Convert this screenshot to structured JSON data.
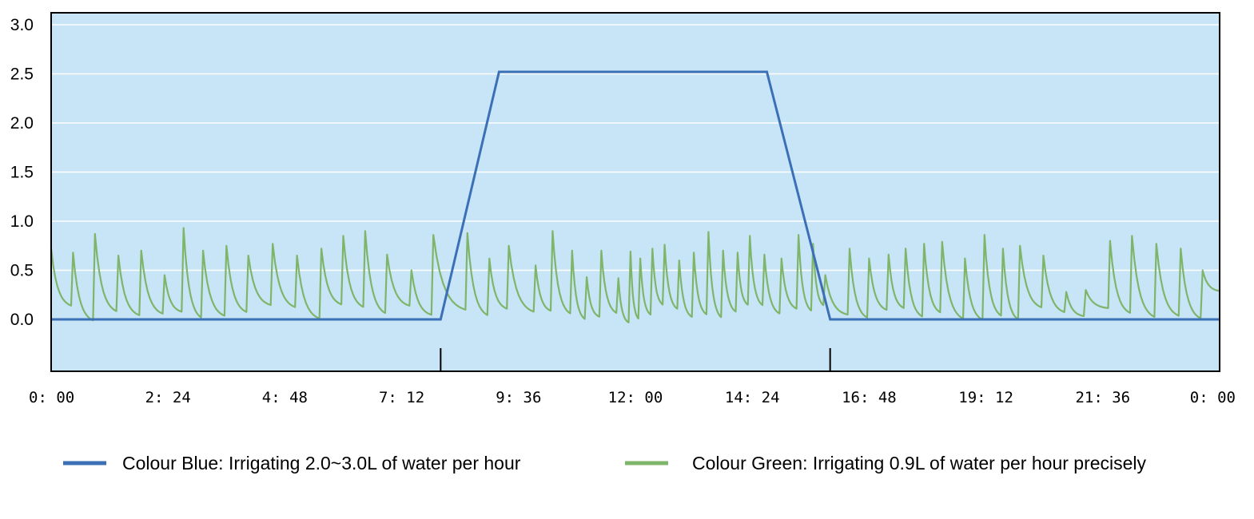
{
  "chart_data": {
    "type": "line",
    "title": "",
    "xlabel": "",
    "ylabel": "",
    "ylim": [
      -0.5,
      3.15
    ],
    "xlim_hours": [
      0,
      24
    ],
    "y_ticks": [
      {
        "value": 0.0,
        "label": "0.0"
      },
      {
        "value": 0.5,
        "label": "0.5"
      },
      {
        "value": 1.0,
        "label": "1.0"
      },
      {
        "value": 1.5,
        "label": "1.5"
      },
      {
        "value": 2.0,
        "label": "2.0"
      },
      {
        "value": 2.5,
        "label": "2.5"
      },
      {
        "value": 3.0,
        "label": "3.0"
      }
    ],
    "x_ticks": [
      {
        "value": 0,
        "label": "0: 00"
      },
      {
        "value": 2.4,
        "label": "2: 24"
      },
      {
        "value": 4.8,
        "label": "4: 48"
      },
      {
        "value": 7.2,
        "label": "7: 12"
      },
      {
        "value": 9.6,
        "label": "9: 36"
      },
      {
        "value": 12.0,
        "label": "12: 00"
      },
      {
        "value": 14.4,
        "label": "14: 24"
      },
      {
        "value": 16.8,
        "label": "16: 48"
      },
      {
        "value": 19.2,
        "label": "19: 12"
      },
      {
        "value": 21.6,
        "label": "21: 36"
      },
      {
        "value": 24.0,
        "label": "0: 00"
      }
    ],
    "markers_hours": [
      8.0,
      16.0
    ],
    "grid": true,
    "colors": {
      "plot_bg": "#c7e5f6",
      "grid": "#ffffff",
      "blue": "#3b6fb6",
      "green": "#7fb56a",
      "axis": "#000000"
    },
    "series": [
      {
        "name": "Colour Blue: Irrigating 2.0~3.0L of water per hour",
        "color": "#3b6fb6",
        "x": [
          0,
          8.0,
          9.2,
          14.7,
          16.0,
          24.0
        ],
        "y": [
          0.0,
          0.0,
          2.52,
          2.52,
          0.0,
          0.0
        ]
      },
      {
        "name": "Colour Green: Irrigating 0.9L of water per hour precisely",
        "color": "#7fb56a",
        "start_value": 0.72,
        "pulses_hours": [
          0.45,
          0.9,
          1.38,
          1.85,
          2.33,
          2.72,
          3.12,
          3.6,
          4.05,
          4.55,
          5.05,
          5.55,
          6.0,
          6.45,
          6.9,
          7.4,
          7.85,
          8.55,
          9.0,
          9.4,
          9.95,
          10.3,
          10.7,
          11.0,
          11.3,
          11.65,
          11.9,
          12.1,
          12.35,
          12.6,
          12.9,
          13.2,
          13.5,
          13.8,
          14.1,
          14.35,
          14.65,
          15.0,
          15.35,
          15.65,
          15.9,
          16.4,
          16.8,
          17.2,
          17.55,
          17.93,
          18.3,
          18.77,
          19.17,
          19.55,
          19.9,
          20.38,
          20.85,
          21.25,
          21.75,
          22.2,
          22.7,
          23.2,
          23.65
        ],
        "peaks": [
          0.68,
          0.87,
          0.65,
          0.7,
          0.45,
          0.93,
          0.7,
          0.75,
          0.65,
          0.77,
          0.65,
          0.72,
          0.85,
          0.9,
          0.66,
          0.5,
          0.86,
          0.88,
          0.62,
          0.75,
          0.55,
          0.9,
          0.7,
          0.43,
          0.7,
          0.42,
          0.69,
          0.62,
          0.72,
          0.76,
          0.6,
          0.68,
          0.89,
          0.7,
          0.68,
          0.85,
          0.66,
          0.62,
          0.86,
          0.77,
          0.45,
          0.72,
          0.62,
          0.66,
          0.72,
          0.77,
          0.79,
          0.62,
          0.86,
          0.72,
          0.75,
          0.65,
          0.28,
          0.3,
          0.8,
          0.85,
          0.77,
          0.72,
          0.5
        ],
        "troughs_range": [
          -0.05,
          0.25
        ]
      }
    ],
    "legend": {
      "placement": "bottom",
      "entries": [
        "Colour Blue: Irrigating 2.0~3.0L of water per hour",
        "Colour Green: Irrigating 0.9L of water per hour precisely"
      ]
    }
  }
}
